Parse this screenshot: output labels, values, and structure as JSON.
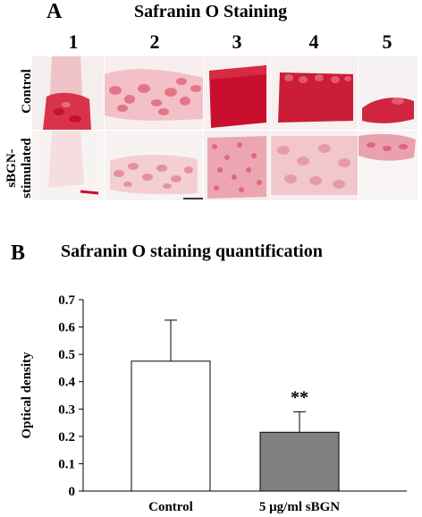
{
  "panel_a": {
    "letter": "A",
    "title": "Safranin O Staining",
    "columns": [
      "1",
      "2",
      "3",
      "4",
      "5"
    ],
    "rows": [
      "Control",
      "sBGN-\nstimulated"
    ]
  },
  "panel_b": {
    "letter": "B",
    "title": "Safranin O staining quantification"
  },
  "chart_data": {
    "type": "bar",
    "categories": [
      "Control",
      "5 μg/ml sBGN"
    ],
    "values": [
      0.475,
      0.215
    ],
    "errors": [
      0.15,
      0.075
    ],
    "bar_colors": [
      "#ffffff",
      "#808080"
    ],
    "annotations": [
      "",
      "**"
    ],
    "ylabel": "Optical density",
    "xlabel": "",
    "ylim": [
      0,
      0.7
    ],
    "yticks": [
      "0",
      "0.1",
      "0.2",
      "0.3",
      "0.4",
      "0.5",
      "0.6",
      "0.7"
    ],
    "grid": false
  }
}
